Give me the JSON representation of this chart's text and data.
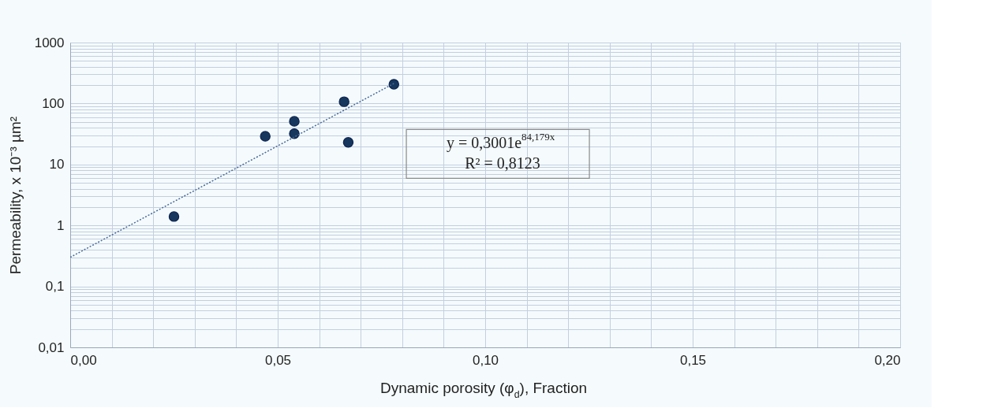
{
  "chart_data": {
    "type": "scatter",
    "xlabel": "Dynamic porosity (φ$_{d}$), Fraction",
    "ylabel": "Permeability, x 10⁻³ µm²",
    "annotations": [
      "y = 0,3001e$^{84,179x}$",
      "R² = 0,8123"
    ],
    "series": [
      {
        "type": "scatter",
        "color": "#17375e",
        "marker": "circle",
        "x": [
          0.025,
          0.047,
          0.054,
          0.054,
          0.066,
          0.067,
          0.078
        ],
        "values": [
          1.4,
          29,
          51,
          32,
          107,
          23,
          207
        ]
      },
      {
        "type": "line",
        "color": "#4a6a9a",
        "line_style": "dotted",
        "marker": "none",
        "x": [
          0.0,
          0.078
        ],
        "values": [
          0.3,
          213
        ]
      }
    ],
    "log": "y",
    "xlim": [
      0,
      0.2
    ],
    "ylim": [
      0.01,
      1000
    ],
    "xticks": [
      {
        "value": 0,
        "label": "0,00"
      },
      {
        "value": 0.01,
        "label": null
      },
      {
        "value": 0.02,
        "label": null
      },
      {
        "value": 0.03,
        "label": null
      },
      {
        "value": 0.04,
        "label": null
      },
      {
        "value": 0.05,
        "label": "0,05"
      },
      {
        "value": 0.06,
        "label": null
      },
      {
        "value": 0.07,
        "label": null
      },
      {
        "value": 0.08,
        "label": null
      },
      {
        "value": 0.09,
        "label": null
      },
      {
        "value": 0.1,
        "label": "0,10"
      },
      {
        "value": 0.11,
        "label": null
      },
      {
        "value": 0.12,
        "label": null
      },
      {
        "value": 0.13,
        "label": null
      },
      {
        "value": 0.14,
        "label": null
      },
      {
        "value": 0.15,
        "label": "0,15"
      },
      {
        "value": 0.16,
        "label": null
      },
      {
        "value": 0.17,
        "label": null
      },
      {
        "value": 0.18,
        "label": null
      },
      {
        "value": 0.19,
        "label": null
      },
      {
        "value": 0.2,
        "label": "0,20"
      }
    ],
    "yticks": [
      {
        "value": 0.01,
        "label": "0,01"
      },
      {
        "value": 0.02,
        "label": null
      },
      {
        "value": 0.03,
        "label": null
      },
      {
        "value": 0.04,
        "label": null
      },
      {
        "value": 0.05,
        "label": null
      },
      {
        "value": 0.06,
        "label": null
      },
      {
        "value": 0.07,
        "label": null
      },
      {
        "value": 0.08,
        "label": null
      },
      {
        "value": 0.09,
        "label": null
      },
      {
        "value": 0.1,
        "label": "0,1"
      },
      {
        "value": 0.2,
        "label": null
      },
      {
        "value": 0.3,
        "label": null
      },
      {
        "value": 0.4,
        "label": null
      },
      {
        "value": 0.5,
        "label": null
      },
      {
        "value": 0.6,
        "label": null
      },
      {
        "value": 0.7,
        "label": null
      },
      {
        "value": 0.8,
        "label": null
      },
      {
        "value": 0.9,
        "label": null
      },
      1,
      {
        "value": 2,
        "label": null
      },
      {
        "value": 3,
        "label": null
      },
      {
        "value": 4,
        "label": null
      },
      {
        "value": 5,
        "label": null
      },
      {
        "value": 6,
        "label": null
      },
      {
        "value": 7,
        "label": null
      },
      {
        "value": 8,
        "label": null
      },
      {
        "value": 9,
        "label": null
      },
      10,
      {
        "value": 20,
        "label": null
      },
      {
        "value": 30,
        "label": null
      },
      {
        "value": 40,
        "label": null
      },
      {
        "value": 50,
        "label": null
      },
      {
        "value": 60,
        "label": null
      },
      {
        "value": 70,
        "label": null
      },
      {
        "value": 80,
        "label": null
      },
      {
        "value": 90,
        "label": null
      },
      100,
      {
        "value": 200,
        "label": null
      },
      {
        "value": 300,
        "label": null
      },
      {
        "value": 400,
        "label": null
      },
      {
        "value": 500,
        "label": null
      },
      {
        "value": 600,
        "label": null
      },
      {
        "value": 700,
        "label": null
      },
      {
        "value": 800,
        "label": null
      },
      {
        "value": 900,
        "label": null
      },
      1000
    ],
    "grid": true
  }
}
